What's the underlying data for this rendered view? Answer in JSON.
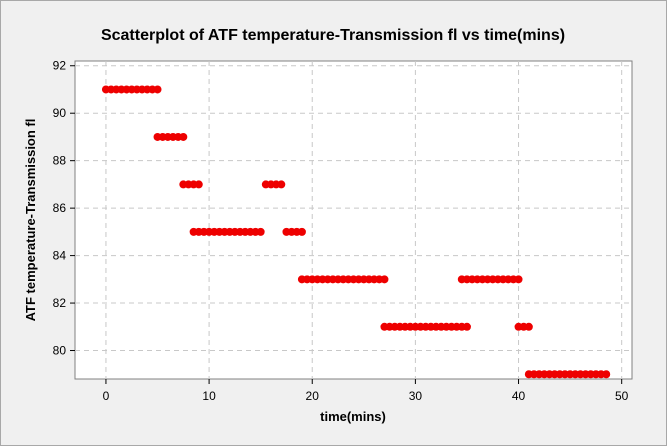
{
  "chart_data": {
    "type": "scatter",
    "title": "Scatterplot of ATF temperature-Transmission fl vs time(mins)",
    "xlabel": "time(mins)",
    "ylabel": "ATF temperature-Transmission fl",
    "xlim": [
      -3,
      51
    ],
    "ylim": [
      78.8,
      92.2
    ],
    "xticks": [
      0,
      10,
      20,
      30,
      40,
      50
    ],
    "yticks": [
      80,
      82,
      84,
      86,
      88,
      90,
      92
    ],
    "grid": true,
    "grid_style": "dashed",
    "colors": {
      "marker": "#ee0000",
      "background": "#f0f0f0",
      "plot_area": "#ffffff",
      "grid": "#c8c8c8"
    },
    "points": [
      [
        0.0,
        91
      ],
      [
        0.5,
        91
      ],
      [
        1.0,
        91
      ],
      [
        1.5,
        91
      ],
      [
        2.0,
        91
      ],
      [
        2.5,
        91
      ],
      [
        3.0,
        91
      ],
      [
        3.5,
        91
      ],
      [
        4.0,
        91
      ],
      [
        4.5,
        91
      ],
      [
        5.0,
        91
      ],
      [
        5.0,
        89
      ],
      [
        5.5,
        89
      ],
      [
        6.0,
        89
      ],
      [
        6.5,
        89
      ],
      [
        7.0,
        89
      ],
      [
        7.5,
        89
      ],
      [
        7.5,
        87
      ],
      [
        8.0,
        87
      ],
      [
        8.5,
        87
      ],
      [
        9.0,
        87
      ],
      [
        8.5,
        85
      ],
      [
        9.0,
        85
      ],
      [
        9.5,
        85
      ],
      [
        10.0,
        85
      ],
      [
        10.5,
        85
      ],
      [
        11.0,
        85
      ],
      [
        11.5,
        85
      ],
      [
        12.0,
        85
      ],
      [
        12.5,
        85
      ],
      [
        13.0,
        85
      ],
      [
        13.5,
        85
      ],
      [
        14.0,
        85
      ],
      [
        14.5,
        85
      ],
      [
        15.0,
        85
      ],
      [
        15.5,
        87
      ],
      [
        16.0,
        87
      ],
      [
        16.5,
        87
      ],
      [
        17.0,
        87
      ],
      [
        17.5,
        85
      ],
      [
        18.0,
        85
      ],
      [
        18.5,
        85
      ],
      [
        19.0,
        85
      ],
      [
        19.0,
        83
      ],
      [
        19.5,
        83
      ],
      [
        20.0,
        83
      ],
      [
        20.5,
        83
      ],
      [
        21.0,
        83
      ],
      [
        21.5,
        83
      ],
      [
        22.0,
        83
      ],
      [
        22.5,
        83
      ],
      [
        23.0,
        83
      ],
      [
        23.5,
        83
      ],
      [
        24.0,
        83
      ],
      [
        24.5,
        83
      ],
      [
        25.0,
        83
      ],
      [
        25.5,
        83
      ],
      [
        26.0,
        83
      ],
      [
        26.5,
        83
      ],
      [
        27.0,
        83
      ],
      [
        27.0,
        81
      ],
      [
        27.5,
        81
      ],
      [
        28.0,
        81
      ],
      [
        28.5,
        81
      ],
      [
        29.0,
        81
      ],
      [
        29.5,
        81
      ],
      [
        30.0,
        81
      ],
      [
        30.5,
        81
      ],
      [
        31.0,
        81
      ],
      [
        31.5,
        81
      ],
      [
        32.0,
        81
      ],
      [
        32.5,
        81
      ],
      [
        33.0,
        81
      ],
      [
        33.5,
        81
      ],
      [
        34.0,
        81
      ],
      [
        34.5,
        81
      ],
      [
        35.0,
        81
      ],
      [
        34.5,
        83
      ],
      [
        35.0,
        83
      ],
      [
        35.5,
        83
      ],
      [
        36.0,
        83
      ],
      [
        36.5,
        83
      ],
      [
        37.0,
        83
      ],
      [
        37.5,
        83
      ],
      [
        38.0,
        83
      ],
      [
        38.5,
        83
      ],
      [
        39.0,
        83
      ],
      [
        39.5,
        83
      ],
      [
        40.0,
        83
      ],
      [
        40.0,
        81
      ],
      [
        40.5,
        81
      ],
      [
        41.0,
        81
      ],
      [
        41.0,
        79
      ],
      [
        41.5,
        79
      ],
      [
        42.0,
        79
      ],
      [
        42.5,
        79
      ],
      [
        43.0,
        79
      ],
      [
        43.5,
        79
      ],
      [
        44.0,
        79
      ],
      [
        44.5,
        79
      ],
      [
        45.0,
        79
      ],
      [
        45.5,
        79
      ],
      [
        46.0,
        79
      ],
      [
        46.5,
        79
      ],
      [
        47.0,
        79
      ],
      [
        47.5,
        79
      ],
      [
        48.0,
        79
      ],
      [
        48.5,
        79
      ]
    ]
  }
}
